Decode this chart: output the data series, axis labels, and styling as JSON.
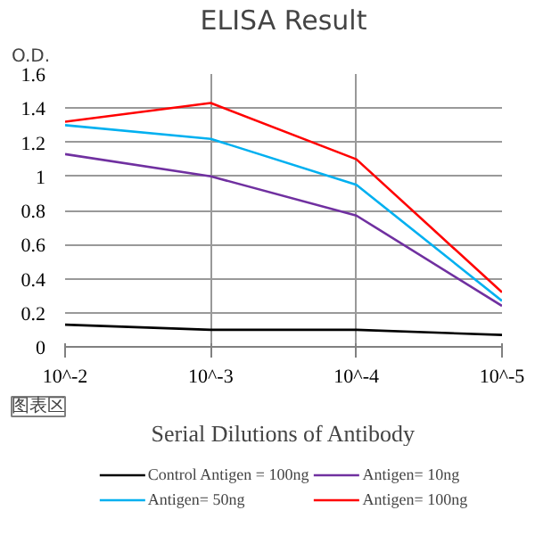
{
  "chart_data": {
    "type": "line",
    "title": "ELISA Result",
    "ylabel": "O.D.",
    "xlabel": "Serial Dilutions of Antibody",
    "categories": [
      "10^-2",
      "10^-3",
      "10^-4",
      "10^-5"
    ],
    "series": [
      {
        "name": "Control Antigen = 100ng",
        "color": "#000000",
        "values": [
          0.13,
          0.1,
          0.1,
          0.07
        ]
      },
      {
        "name": "Antigen= 10ng",
        "color": "#7030a0",
        "values": [
          1.13,
          1.0,
          0.77,
          0.24
        ]
      },
      {
        "name": "Antigen= 50ng",
        "color": "#00b0f0",
        "values": [
          1.3,
          1.22,
          0.95,
          0.27
        ]
      },
      {
        "name": "Antigen= 100ng",
        "color": "#ff0000",
        "values": [
          1.32,
          1.43,
          1.1,
          0.32
        ]
      }
    ],
    "ylim": [
      0,
      1.6
    ],
    "yticks": [
      0,
      0.2,
      0.4,
      0.6,
      0.8,
      1,
      1.2,
      1.4,
      1.6
    ],
    "grid": true,
    "legend": "bottom",
    "marker": "none",
    "line_style": "solid",
    "annotations": [
      "图表区"
    ]
  }
}
